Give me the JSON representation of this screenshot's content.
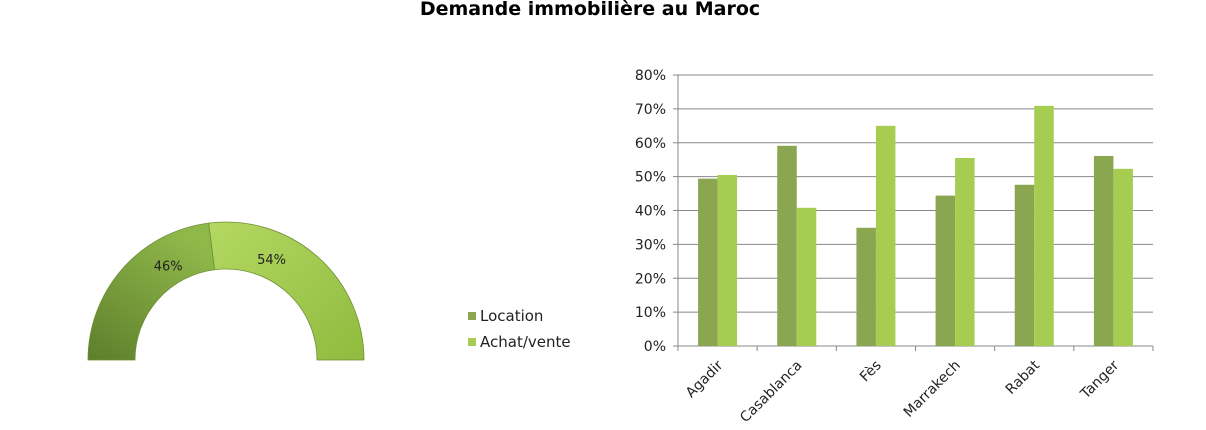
{
  "chart_data": [
    {
      "type": "pie",
      "subtype": "half-donut",
      "title": "Demande immobilière au Maroc",
      "slices": [
        {
          "name": "Location",
          "value": 46,
          "label": "46%",
          "color": "#86a84a"
        },
        {
          "name": "Achat/vente",
          "value": 54,
          "label": "54%",
          "color": "#a5cd52"
        }
      ]
    },
    {
      "type": "bar",
      "categories": [
        "Agadir",
        "Casablanca",
        "Fès",
        "Marrakech",
        "Rabat",
        "Tanger"
      ],
      "series": [
        {
          "name": "Location",
          "color": "#8aa650",
          "values": [
            49.4,
            59.1,
            34.9,
            44.4,
            47.6,
            56.1
          ]
        },
        {
          "name": "Achat/vente",
          "color": "#a6cd51",
          "values": [
            50.5,
            40.8,
            65.0,
            55.5,
            70.9,
            52.3
          ]
        }
      ],
      "ylim": [
        0,
        80
      ],
      "yticks": [
        "0%",
        "10%",
        "20%",
        "30%",
        "40%",
        "50%",
        "60%",
        "70%",
        "80%"
      ],
      "grid": true,
      "legend": "left"
    }
  ],
  "title": "Demande immobilière au Maroc",
  "legend": [
    {
      "label": "Location",
      "color": "#8aa650"
    },
    {
      "label": "Achat/vente",
      "color": "#a6cd51"
    }
  ]
}
